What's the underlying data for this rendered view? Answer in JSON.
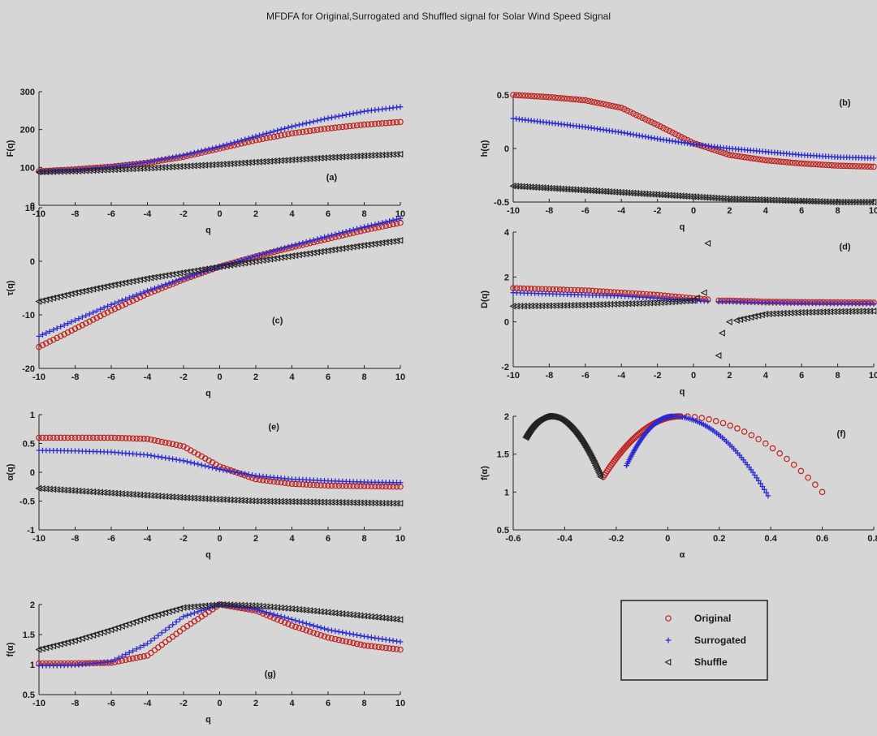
{
  "figure_title": "MFDFA for Original,Surrogated and Shuffled signal for Solar Wind Speed Signal",
  "colors": {
    "original": "#c0201c",
    "surrogated": "#2a2ad0",
    "shuffle": "#222222"
  },
  "legend": {
    "entries": [
      {
        "label": "Original",
        "marker": "circle"
      },
      {
        "label": "Surrogated",
        "marker": "plus"
      },
      {
        "label": "Shuffle",
        "marker": "triangle-left"
      }
    ]
  },
  "chart_data": [
    {
      "id": "a",
      "type": "scatter",
      "letter": "(a)",
      "xlabel": "q",
      "ylabel": "F(q)",
      "xlim": [
        -10,
        10
      ],
      "ylim": [
        0,
        300
      ],
      "xticks": [
        -10,
        -8,
        -6,
        -4,
        -2,
        0,
        2,
        4,
        6,
        8,
        10
      ],
      "yticks": [
        0,
        100,
        200,
        300
      ],
      "x_range": [
        -10,
        10
      ],
      "points": 101,
      "series": [
        {
          "name": "Original",
          "marker": "circle",
          "x": [
            -10,
            -8,
            -6,
            -4,
            -2,
            0,
            2,
            4,
            6,
            8,
            10
          ],
          "y": [
            90,
            95,
            102,
            112,
            128,
            150,
            172,
            190,
            203,
            213,
            220
          ]
        },
        {
          "name": "Surrogated",
          "marker": "plus",
          "x": [
            -10,
            -8,
            -6,
            -4,
            -2,
            0,
            2,
            4,
            6,
            8,
            10
          ],
          "y": [
            88,
            94,
            102,
            114,
            132,
            155,
            182,
            208,
            230,
            248,
            260
          ]
        },
        {
          "name": "Shuffle",
          "marker": "triangle-left",
          "x": [
            -10,
            -8,
            -6,
            -4,
            -2,
            0,
            2,
            4,
            6,
            8,
            10
          ],
          "y": [
            88,
            90,
            94,
            98,
            103,
            108,
            114,
            120,
            126,
            131,
            135
          ]
        }
      ]
    },
    {
      "id": "b",
      "type": "scatter",
      "letter": "(b)",
      "xlabel": "q",
      "ylabel": "h(q)",
      "xlim": [
        -10,
        10
      ],
      "ylim": [
        -0.5,
        0.5
      ],
      "xticks": [
        -10,
        -8,
        -6,
        -4,
        -2,
        0,
        2,
        4,
        6,
        8,
        10
      ],
      "yticks": [
        -0.5,
        0,
        0.5
      ],
      "x_range": [
        -10,
        10
      ],
      "points": 121,
      "series": [
        {
          "name": "Original",
          "marker": "circle",
          "x": [
            -10,
            -8,
            -6,
            -4,
            -2,
            0,
            2,
            4,
            6,
            8,
            10
          ],
          "y": [
            0.5,
            0.48,
            0.45,
            0.38,
            0.22,
            0.05,
            -0.06,
            -0.11,
            -0.14,
            -0.16,
            -0.17
          ]
        },
        {
          "name": "Surrogated",
          "marker": "plus",
          "x": [
            -10,
            -8,
            -6,
            -4,
            -2,
            0,
            2,
            4,
            6,
            8,
            10
          ],
          "y": [
            0.28,
            0.24,
            0.2,
            0.15,
            0.09,
            0.04,
            0.0,
            -0.03,
            -0.06,
            -0.08,
            -0.09
          ]
        },
        {
          "name": "Shuffle",
          "marker": "triangle-left",
          "x": [
            -10,
            -8,
            -6,
            -4,
            -2,
            0,
            2,
            4,
            6,
            8,
            10
          ],
          "y": [
            -0.35,
            -0.37,
            -0.39,
            -0.41,
            -0.43,
            -0.45,
            -0.47,
            -0.48,
            -0.49,
            -0.5,
            -0.5
          ]
        }
      ]
    },
    {
      "id": "c",
      "type": "scatter",
      "letter": "(c)",
      "xlabel": "q",
      "ylabel": "τ(q)",
      "xlim": [
        -10,
        10
      ],
      "ylim": [
        -20,
        10
      ],
      "xticks": [
        -10,
        -8,
        -6,
        -4,
        -2,
        0,
        2,
        4,
        6,
        8,
        10
      ],
      "yticks": [
        -20,
        -10,
        0,
        10
      ],
      "x_range": [
        -10,
        10
      ],
      "points": 101,
      "series": [
        {
          "name": "Original",
          "marker": "circle",
          "x": [
            -10,
            -8,
            -6,
            -4,
            -2,
            0,
            2,
            4,
            6,
            8,
            10
          ],
          "y": [
            -16,
            -12.6,
            -9.2,
            -6.1,
            -3.4,
            -1.0,
            0.9,
            2.6,
            4.2,
            5.8,
            7.2
          ]
        },
        {
          "name": "Surrogated",
          "marker": "plus",
          "x": [
            -10,
            -8,
            -6,
            -4,
            -2,
            0,
            2,
            4,
            6,
            8,
            10
          ],
          "y": [
            -14,
            -11.0,
            -8.1,
            -5.5,
            -3.2,
            -1.0,
            1.0,
            2.9,
            4.7,
            6.4,
            8.0
          ]
        },
        {
          "name": "Shuffle",
          "marker": "triangle-left",
          "x": [
            -10,
            -8,
            -6,
            -4,
            -2,
            0,
            2,
            4,
            6,
            8,
            10
          ],
          "y": [
            -7.5,
            -5.9,
            -4.5,
            -3.2,
            -2.1,
            -1.0,
            0.0,
            1.0,
            2.0,
            3.0,
            3.9
          ]
        }
      ]
    },
    {
      "id": "d",
      "type": "scatter",
      "letter": "(d)",
      "xlabel": "q",
      "ylabel": "D(q)",
      "xlim": [
        -10,
        10
      ],
      "ylim": [
        -2,
        4
      ],
      "xticks": [
        -10,
        -8,
        -6,
        -4,
        -2,
        0,
        2,
        4,
        6,
        8,
        10
      ],
      "yticks": [
        -2,
        0,
        2,
        4
      ],
      "x_range": [
        -10,
        10
      ],
      "points": 101,
      "series": [
        {
          "name": "Original",
          "marker": "circle",
          "x": [
            -10,
            -8,
            -6,
            -4,
            -2,
            0,
            1.4,
            2,
            4,
            6,
            8,
            10
          ],
          "y": [
            1.5,
            1.45,
            1.4,
            1.3,
            1.2,
            1.05,
            0.95,
            0.95,
            0.9,
            0.88,
            0.87,
            0.86
          ]
        },
        {
          "name": "Surrogated",
          "marker": "plus",
          "x": [
            -10,
            -8,
            -6,
            -4,
            -2,
            0,
            1.4,
            2,
            4,
            6,
            8,
            10
          ],
          "y": [
            1.3,
            1.25,
            1.2,
            1.15,
            1.05,
            0.95,
            0.9,
            0.9,
            0.85,
            0.83,
            0.82,
            0.81
          ]
        },
        {
          "name": "Shuffle",
          "marker": "triangle-left",
          "x": [
            -10,
            -8,
            -6,
            -4,
            -2,
            0,
            0.6,
            0.8,
            1.4,
            1.6,
            2,
            4,
            6,
            8,
            10
          ],
          "y": [
            0.7,
            0.72,
            0.75,
            0.8,
            0.85,
            0.95,
            1.3,
            3.5,
            -1.5,
            -0.5,
            0.0,
            0.35,
            0.42,
            0.46,
            0.48
          ]
        }
      ]
    },
    {
      "id": "e",
      "type": "scatter",
      "letter": "(e)",
      "xlabel": "q",
      "ylabel": "α(q)",
      "xlim": [
        -10,
        10
      ],
      "ylim": [
        -1,
        1
      ],
      "xticks": [
        -10,
        -8,
        -6,
        -4,
        -2,
        0,
        2,
        4,
        6,
        8,
        10
      ],
      "yticks": [
        -1,
        -0.5,
        0,
        0.5,
        1
      ],
      "x_range": [
        -10,
        10
      ],
      "points": 101,
      "series": [
        {
          "name": "Original",
          "marker": "circle",
          "x": [
            -10,
            -8,
            -6,
            -4,
            -2,
            0,
            2,
            4,
            6,
            8,
            10
          ],
          "y": [
            0.6,
            0.6,
            0.6,
            0.58,
            0.45,
            0.1,
            -0.12,
            -0.2,
            -0.23,
            -0.24,
            -0.25
          ]
        },
        {
          "name": "Surrogated",
          "marker": "plus",
          "x": [
            -10,
            -8,
            -6,
            -4,
            -2,
            0,
            2,
            4,
            6,
            8,
            10
          ],
          "y": [
            0.38,
            0.37,
            0.35,
            0.3,
            0.2,
            0.05,
            -0.06,
            -0.12,
            -0.15,
            -0.17,
            -0.18
          ]
        },
        {
          "name": "Shuffle",
          "marker": "triangle-left",
          "x": [
            -10,
            -8,
            -6,
            -4,
            -2,
            0,
            2,
            4,
            6,
            8,
            10
          ],
          "y": [
            -0.28,
            -0.32,
            -0.36,
            -0.4,
            -0.44,
            -0.47,
            -0.5,
            -0.51,
            -0.52,
            -0.53,
            -0.54
          ]
        }
      ]
    },
    {
      "id": "f",
      "type": "scatter",
      "letter": "(f)",
      "xlabel": "α",
      "ylabel": "f(α)",
      "xlim": [
        -0.6,
        0.8
      ],
      "ylim": [
        0.5,
        2
      ],
      "xticks": [
        -0.6,
        -0.4,
        -0.2,
        0,
        0.2,
        0.4,
        0.6,
        0.8
      ],
      "yticks": [
        0.5,
        1,
        1.5,
        2
      ],
      "series": [
        {
          "name": "Original",
          "marker": "circle",
          "alpha_min": -0.25,
          "alpha_max": 0.6,
          "alpha0": 0.05,
          "f_at_min": 1.2,
          "f_at_max": 1.0,
          "left_points": 60,
          "right_points": 20
        },
        {
          "name": "Surrogated",
          "marker": "plus",
          "alpha_min": -0.16,
          "alpha_max": 0.39,
          "alpha0": 0.02,
          "f_at_min": 1.35,
          "f_at_max": 0.95,
          "left_points": 50,
          "right_points": 50
        },
        {
          "name": "Shuffle",
          "marker": "triangle-left",
          "alpha_min": -0.55,
          "alpha_max": -0.26,
          "alpha0": -0.46,
          "f_at_min": 1.72,
          "f_at_max": 1.2,
          "left_points": 60,
          "right_points": 60
        }
      ]
    },
    {
      "id": "g",
      "type": "scatter",
      "letter": "(g)",
      "xlabel": "q",
      "ylabel": "f(α)",
      "xlim": [
        -10,
        10
      ],
      "ylim": [
        0.5,
        2
      ],
      "xticks": [
        -10,
        -8,
        -6,
        -4,
        -2,
        0,
        2,
        4,
        6,
        8,
        10
      ],
      "yticks": [
        0.5,
        1,
        1.5,
        2
      ],
      "x_range": [
        -10,
        10
      ],
      "points": 101,
      "series": [
        {
          "name": "Original",
          "marker": "circle",
          "x": [
            -10,
            -8,
            -6,
            -4,
            -2,
            0,
            2,
            4,
            6,
            8,
            10
          ],
          "y": [
            1.02,
            1.02,
            1.03,
            1.15,
            1.6,
            2.0,
            1.9,
            1.65,
            1.45,
            1.32,
            1.25
          ]
        },
        {
          "name": "Surrogated",
          "marker": "plus",
          "x": [
            -10,
            -8,
            -6,
            -4,
            -2,
            0,
            2,
            4,
            6,
            8,
            10
          ],
          "y": [
            0.98,
            0.99,
            1.05,
            1.35,
            1.8,
            2.0,
            1.92,
            1.75,
            1.58,
            1.47,
            1.38
          ]
        },
        {
          "name": "Shuffle",
          "marker": "triangle-left",
          "x": [
            -10,
            -8,
            -6,
            -4,
            -2,
            0,
            2,
            4,
            6,
            8,
            10
          ],
          "y": [
            1.25,
            1.4,
            1.58,
            1.78,
            1.95,
            2.0,
            1.98,
            1.93,
            1.87,
            1.81,
            1.75
          ]
        }
      ]
    }
  ]
}
